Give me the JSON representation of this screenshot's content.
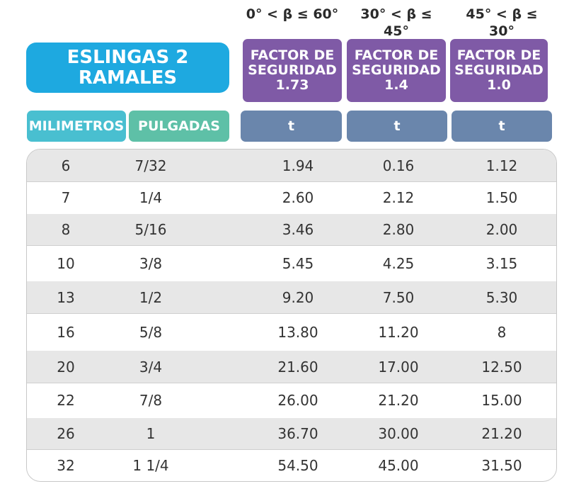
{
  "angles": [
    "0° < β ≤ 60°",
    "30° < β ≤ 45°",
    "45° < β ≤ 30°"
  ],
  "title": {
    "line1": "ESLINGAS 2",
    "line2": "RAMALES"
  },
  "factors": [
    {
      "line1": "FACTOR DE",
      "line2": "SEGURIDAD",
      "line3": "1.73"
    },
    {
      "line1": "FACTOR DE",
      "line2": "SEGURIDAD",
      "line3": "1.4"
    },
    {
      "line1": "FACTOR DE",
      "line2": "SEGURIDAD",
      "line3": "1.0"
    }
  ],
  "headers": {
    "mm": "MILIMETROS",
    "in": "PULGADAS"
  },
  "units": [
    "t",
    "t",
    "t"
  ],
  "rows": [
    [
      "6",
      "7/32",
      "1.94",
      "0.16",
      "1.12"
    ],
    [
      "7",
      "1/4",
      "2.60",
      "2.12",
      "1.50"
    ],
    [
      "8",
      "5/16",
      "3.46",
      "2.80",
      "2.00"
    ],
    [
      "10",
      "3/8",
      "5.45",
      "4.25",
      "3.15"
    ],
    [
      "13",
      "1/2",
      "9.20",
      "7.50",
      "5.30"
    ],
    [
      "16",
      "5/8",
      "13.80",
      "11.20",
      "8"
    ],
    [
      "20",
      "3/4",
      "21.60",
      "17.00",
      "12.50"
    ],
    [
      "22",
      "7/8",
      "26.00",
      "21.20",
      "15.00"
    ],
    [
      "26",
      "1",
      "36.70",
      "30.00",
      "21.20"
    ],
    [
      "32",
      "1 1/4",
      "54.50",
      "45.00",
      "31.50"
    ]
  ],
  "colors": {
    "title": "#1ea9e0",
    "factor": "#7f5aa6",
    "unit": "#6a86ac",
    "mm_header": "#49bfd0",
    "in_header": "#5ec0a7",
    "row_shade": "#e7e7e7"
  }
}
